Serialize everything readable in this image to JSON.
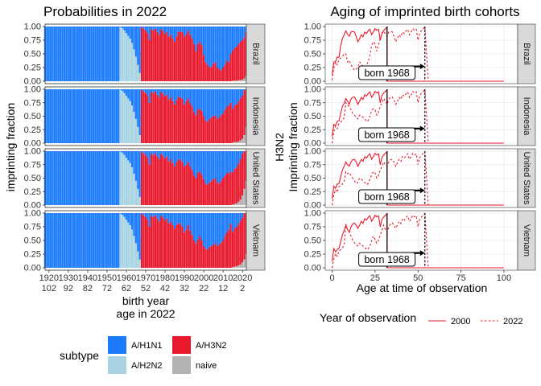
{
  "chart_data": [
    {
      "type": "bar",
      "title": "Probabilities in 2022",
      "xlabel": "birth year",
      "xlabel2": "age in 2022",
      "ylabel": "imprinting fraction",
      "stacked": true,
      "xlim": [
        1918,
        2022
      ],
      "ylim": [
        0,
        1
      ],
      "x_ticks": [
        "1920",
        "1930",
        "1940",
        "1950",
        "1960",
        "1970",
        "1980",
        "1990",
        "2000",
        "2010",
        "2020"
      ],
      "x_ticks2": [
        "102",
        "92",
        "82",
        "72",
        "62",
        "52",
        "42",
        "32",
        "22",
        "12",
        "2"
      ],
      "y_ticks": [
        "0.00",
        "0.25",
        "0.50",
        "0.75",
        "1.00"
      ],
      "legend": {
        "title": "subtype",
        "position": "bottom",
        "entries": [
          {
            "label": "A/H1N1",
            "color": "#1a7bff"
          },
          {
            "label": "A/H3N2",
            "color": "#e8192c"
          },
          {
            "label": "A/H2N2",
            "color": "#a8d3e3"
          },
          {
            "label": "naive",
            "color": "#b3b3b3"
          }
        ]
      },
      "facets": [
        {
          "label": "Brazil",
          "h3n2_1968_2014": [
            0.99,
            0.96,
            0.93,
            0.88,
            0.75,
            0.95,
            0.93,
            0.96,
            0.9,
            0.85,
            0.95,
            0.92,
            0.87,
            0.9,
            0.81,
            0.85,
            0.78,
            0.72,
            0.82,
            0.9,
            0.91,
            0.9,
            0.82,
            0.86,
            0.92,
            0.85,
            0.78,
            0.68,
            0.55,
            0.68,
            0.72,
            0.66,
            0.48,
            0.35,
            0.3,
            0.25,
            0.27,
            0.32,
            0.35,
            0.25,
            0.22,
            0.2,
            0.25,
            0.3,
            0.38,
            0.35,
            0.5
          ],
          "naive_2015_2022": [
            0.01,
            0.01,
            0.01,
            0.02,
            0.02,
            0.03,
            0.05,
            0.1
          ]
        },
        {
          "label": "Indonesia",
          "h3n2_1968_2014": [
            0.99,
            0.96,
            0.93,
            0.88,
            0.75,
            0.95,
            0.93,
            0.96,
            0.9,
            0.85,
            0.95,
            0.92,
            0.87,
            0.9,
            0.81,
            0.85,
            0.78,
            0.72,
            0.8,
            0.86,
            0.85,
            0.82,
            0.72,
            0.78,
            0.83,
            0.74,
            0.68,
            0.58,
            0.52,
            0.62,
            0.64,
            0.6,
            0.5,
            0.42,
            0.4,
            0.45,
            0.48,
            0.5,
            0.52,
            0.45,
            0.48,
            0.52,
            0.55,
            0.62,
            0.68,
            0.7,
            0.75
          ],
          "naive_2015_2022": [
            0.01,
            0.02,
            0.02,
            0.03,
            0.05,
            0.08,
            0.15,
            0.3
          ]
        },
        {
          "label": "United States",
          "h3n2_1968_2014": [
            0.99,
            0.96,
            0.93,
            0.88,
            0.75,
            0.95,
            0.93,
            0.96,
            0.9,
            0.85,
            0.95,
            0.92,
            0.87,
            0.9,
            0.81,
            0.85,
            0.78,
            0.72,
            0.8,
            0.85,
            0.84,
            0.8,
            0.72,
            0.75,
            0.8,
            0.72,
            0.65,
            0.55,
            0.5,
            0.6,
            0.62,
            0.56,
            0.48,
            0.4,
            0.38,
            0.42,
            0.45,
            0.48,
            0.5,
            0.42,
            0.4,
            0.45,
            0.5,
            0.55,
            0.6,
            0.58,
            0.62
          ],
          "naive_2015_2022": [
            0.01,
            0.02,
            0.03,
            0.06,
            0.1,
            0.18,
            0.3,
            0.45
          ]
        },
        {
          "label": "Vietnam",
          "h3n2_1968_2014": [
            0.99,
            0.96,
            0.93,
            0.88,
            0.75,
            0.95,
            0.93,
            0.96,
            0.9,
            0.85,
            0.95,
            0.92,
            0.87,
            0.9,
            0.81,
            0.85,
            0.78,
            0.72,
            0.78,
            0.82,
            0.8,
            0.75,
            0.65,
            0.7,
            0.78,
            0.68,
            0.6,
            0.5,
            0.45,
            0.52,
            0.58,
            0.5,
            0.4,
            0.35,
            0.33,
            0.38,
            0.4,
            0.42,
            0.45,
            0.4,
            0.42,
            0.46,
            0.5,
            0.58,
            0.65,
            0.7,
            0.8
          ],
          "naive_2015_2022": [
            0.01,
            0.02,
            0.03,
            0.04,
            0.06,
            0.1,
            0.15,
            0.25
          ]
        }
      ],
      "series_rules": {
        "h1n1_birth_years": "1918-1956 and 1977-2022 (remainder after other subtypes)",
        "h2n2_1957_1967": [
          0.99,
          0.97,
          0.93,
          0.88,
          0.83,
          0.78,
          0.7,
          0.58,
          0.45,
          0.3,
          0.15
        ],
        "h1n1_share_1957_1967": [
          0.01,
          0.03,
          0.07,
          0.12,
          0.17,
          0.22,
          0.3,
          0.42,
          0.55,
          0.7,
          0.85
        ]
      }
    },
    {
      "type": "line",
      "title": "Aging of imprinted birth cohorts",
      "xlabel": "Age at time of observation",
      "ylabel": "H3N2",
      "ylabel2": "Imprinting fraction",
      "xlim": [
        -4,
        108
      ],
      "ylim": [
        0,
        1
      ],
      "x_ticks": [
        "0",
        "25",
        "50",
        "75",
        "100"
      ],
      "y_ticks": [
        "0.00",
        "0.25",
        "0.50",
        "0.75",
        "1.00"
      ],
      "annotation": "born 1968",
      "annotation_ages": [
        32,
        54
      ],
      "legend": {
        "title": "Year of observation",
        "position": "bottom",
        "entries": [
          {
            "label": "2000",
            "color": "#e8192c",
            "dash": "solid"
          },
          {
            "label": "2022",
            "color": "#e8192c",
            "dash": "dotted"
          }
        ]
      },
      "facets": [
        "Brazil",
        "Indonesia",
        "United States",
        "Vietnam"
      ],
      "series": [
        {
          "name": "2000",
          "ages_0_32_reverse_of_birth_years": "1968-2000 H3N2 fraction by facet"
        },
        {
          "name": "2022",
          "ages_0_54_reverse_of_birth_years": "1968-2022 H3N2 fraction by facet"
        }
      ]
    }
  ]
}
